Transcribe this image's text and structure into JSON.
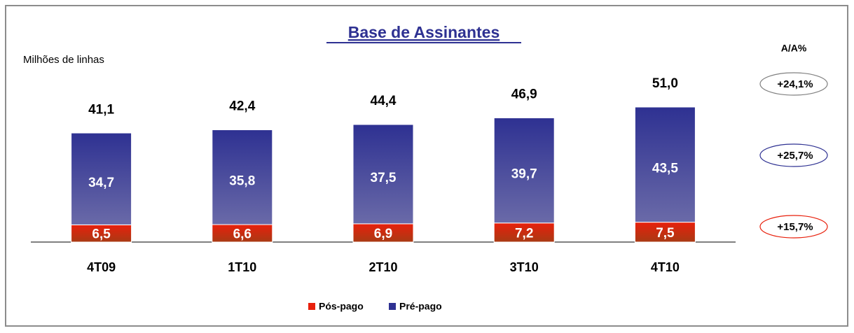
{
  "chart_data": {
    "type": "stacked_bar",
    "title": "Base de Assinantes",
    "subtitle": "Milhões de linhas",
    "categories": [
      "4T09",
      "1T10",
      "2T10",
      "3T10",
      "4T10"
    ],
    "series": [
      {
        "name": "Pós-pago",
        "color": "#e8200c",
        "values": [
          6.5,
          6.6,
          6.9,
          7.2,
          7.5
        ],
        "value_labels": [
          "6,5",
          "6,6",
          "6,9",
          "7,2",
          "7,5"
        ]
      },
      {
        "name": "Pré-pago",
        "color": "#2e3192",
        "values": [
          34.7,
          35.8,
          37.5,
          39.7,
          43.5
        ],
        "value_labels": [
          "34,7",
          "35,8",
          "37,5",
          "39,7",
          "43,5"
        ]
      }
    ],
    "totals": {
      "values": [
        41.1,
        42.4,
        44.4,
        46.9,
        51.0
      ],
      "value_labels": [
        "41,1",
        "42,4",
        "44,4",
        "46,9",
        "51,0"
      ]
    },
    "annotations": {
      "header": "A/A%",
      "items": [
        {
          "label": "+24,1%",
          "color": "#808080"
        },
        {
          "label": "+25,7%",
          "color": "#2e3192"
        },
        {
          "label": "+15,7%",
          "color": "#e8200c"
        }
      ]
    },
    "legend": "bottom"
  }
}
